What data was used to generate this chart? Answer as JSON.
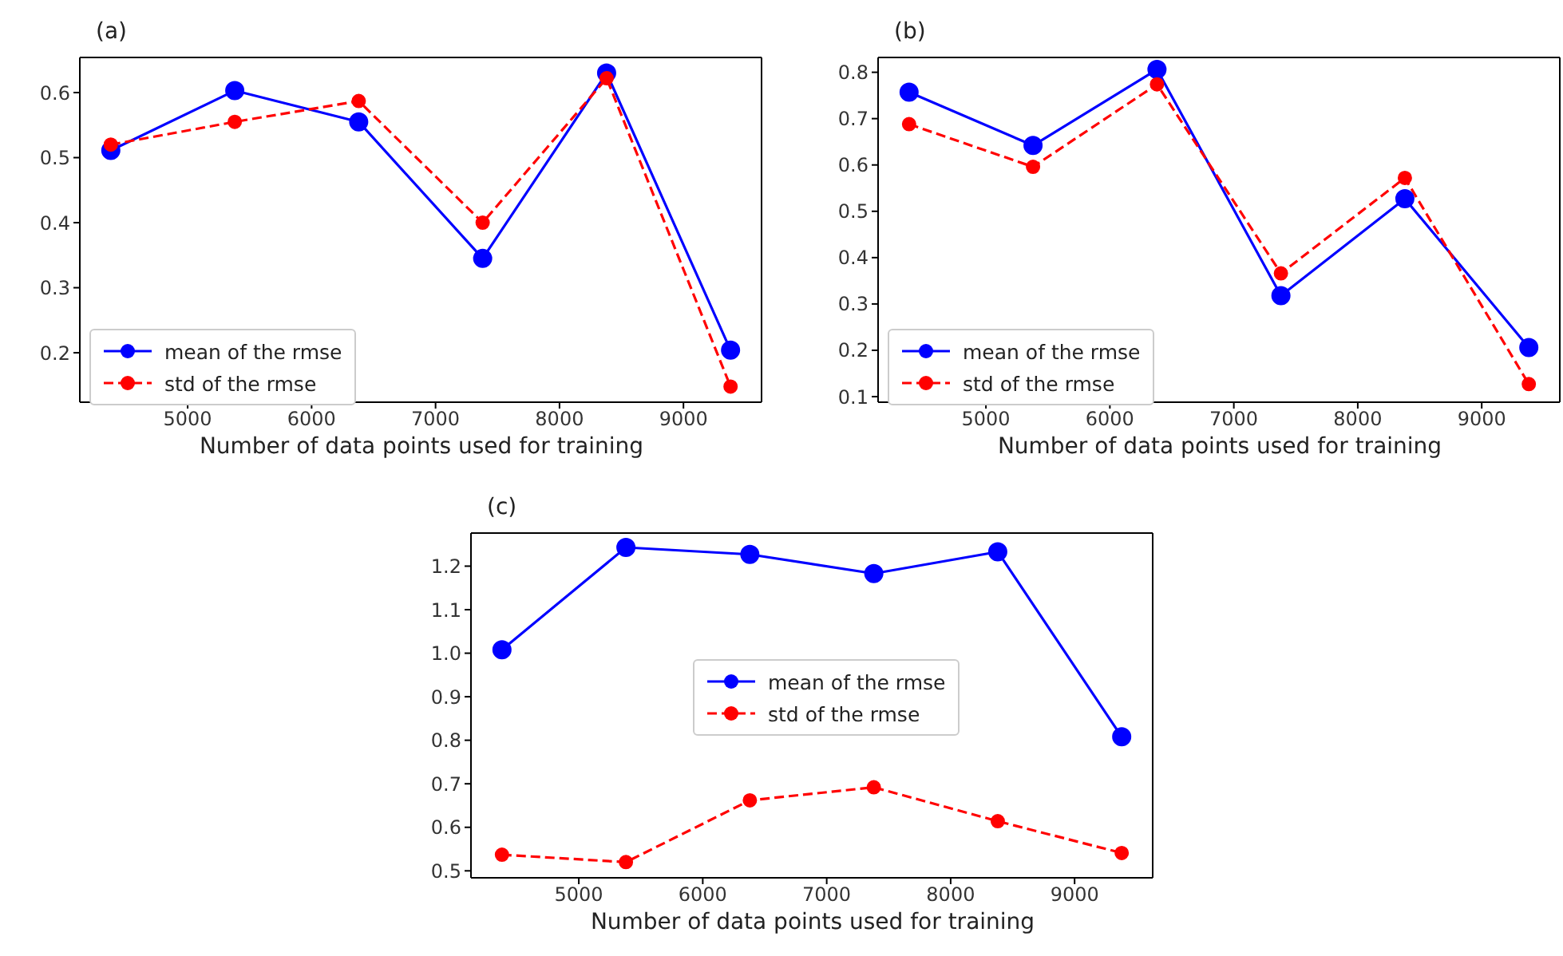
{
  "chart_data": [
    {
      "type": "line",
      "title": "(a)",
      "xlabel": "Number of data points used for training",
      "x": [
        4380,
        5380,
        6380,
        7380,
        8380,
        9380
      ],
      "xlim": [
        4130,
        9630
      ],
      "xticks": [
        5000,
        6000,
        7000,
        8000,
        9000
      ],
      "ylim": [
        0.124,
        0.654
      ],
      "yticks": [
        0.2,
        0.3,
        0.4,
        0.5,
        0.6
      ],
      "legend": "lower left",
      "grid": false,
      "marker": "circle",
      "series": [
        {
          "name": "mean of the rmse",
          "color": "#0000ff",
          "line_style": "solid",
          "values": [
            0.511,
            0.603,
            0.555,
            0.345,
            0.63,
            0.204
          ]
        },
        {
          "name": "std of the rmse",
          "color": "#ff0000",
          "line_style": "dashed",
          "values": [
            0.52,
            0.555,
            0.587,
            0.4,
            0.622,
            0.148
          ]
        }
      ]
    },
    {
      "type": "line",
      "title": "(b)",
      "xlabel": "Number of data points used for training",
      "x": [
        4380,
        5380,
        6380,
        7380,
        8380,
        9380
      ],
      "xlim": [
        4130,
        9630
      ],
      "xticks": [
        5000,
        6000,
        7000,
        8000,
        9000
      ],
      "ylim": [
        0.088,
        0.832
      ],
      "yticks": [
        0.1,
        0.2,
        0.3,
        0.4,
        0.5,
        0.6,
        0.7,
        0.8
      ],
      "legend": "lower left",
      "grid": false,
      "marker": "circle",
      "series": [
        {
          "name": "mean of the rmse",
          "color": "#0000ff",
          "line_style": "solid",
          "values": [
            0.757,
            0.642,
            0.806,
            0.318,
            0.527,
            0.206
          ]
        },
        {
          "name": "std of the rmse",
          "color": "#ff0000",
          "line_style": "dashed",
          "values": [
            0.688,
            0.596,
            0.774,
            0.366,
            0.572,
            0.127
          ]
        }
      ]
    },
    {
      "type": "line",
      "title": "(c)",
      "xlabel": "Number of data points used for training",
      "x": [
        4380,
        5380,
        6380,
        7380,
        8380,
        9380
      ],
      "xlim": [
        4130,
        9630
      ],
      "xticks": [
        5000,
        6000,
        7000,
        8000,
        9000
      ],
      "ylim": [
        0.484,
        1.276
      ],
      "yticks": [
        0.5,
        0.6,
        0.7,
        0.8,
        0.9,
        {
          "value": 1,
          "label": "1.0"
        },
        1.1,
        1.2
      ],
      "legend": "center",
      "grid": false,
      "marker": "circle",
      "series": [
        {
          "name": "mean of the rmse",
          "color": "#0000ff",
          "line_style": "solid",
          "values": [
            1.008,
            1.243,
            1.227,
            1.183,
            1.233,
            0.808
          ]
        },
        {
          "name": "std of the rmse",
          "color": "#ff0000",
          "line_style": "dashed",
          "values": [
            0.537,
            0.52,
            0.662,
            0.692,
            0.614,
            0.541
          ]
        }
      ]
    }
  ]
}
